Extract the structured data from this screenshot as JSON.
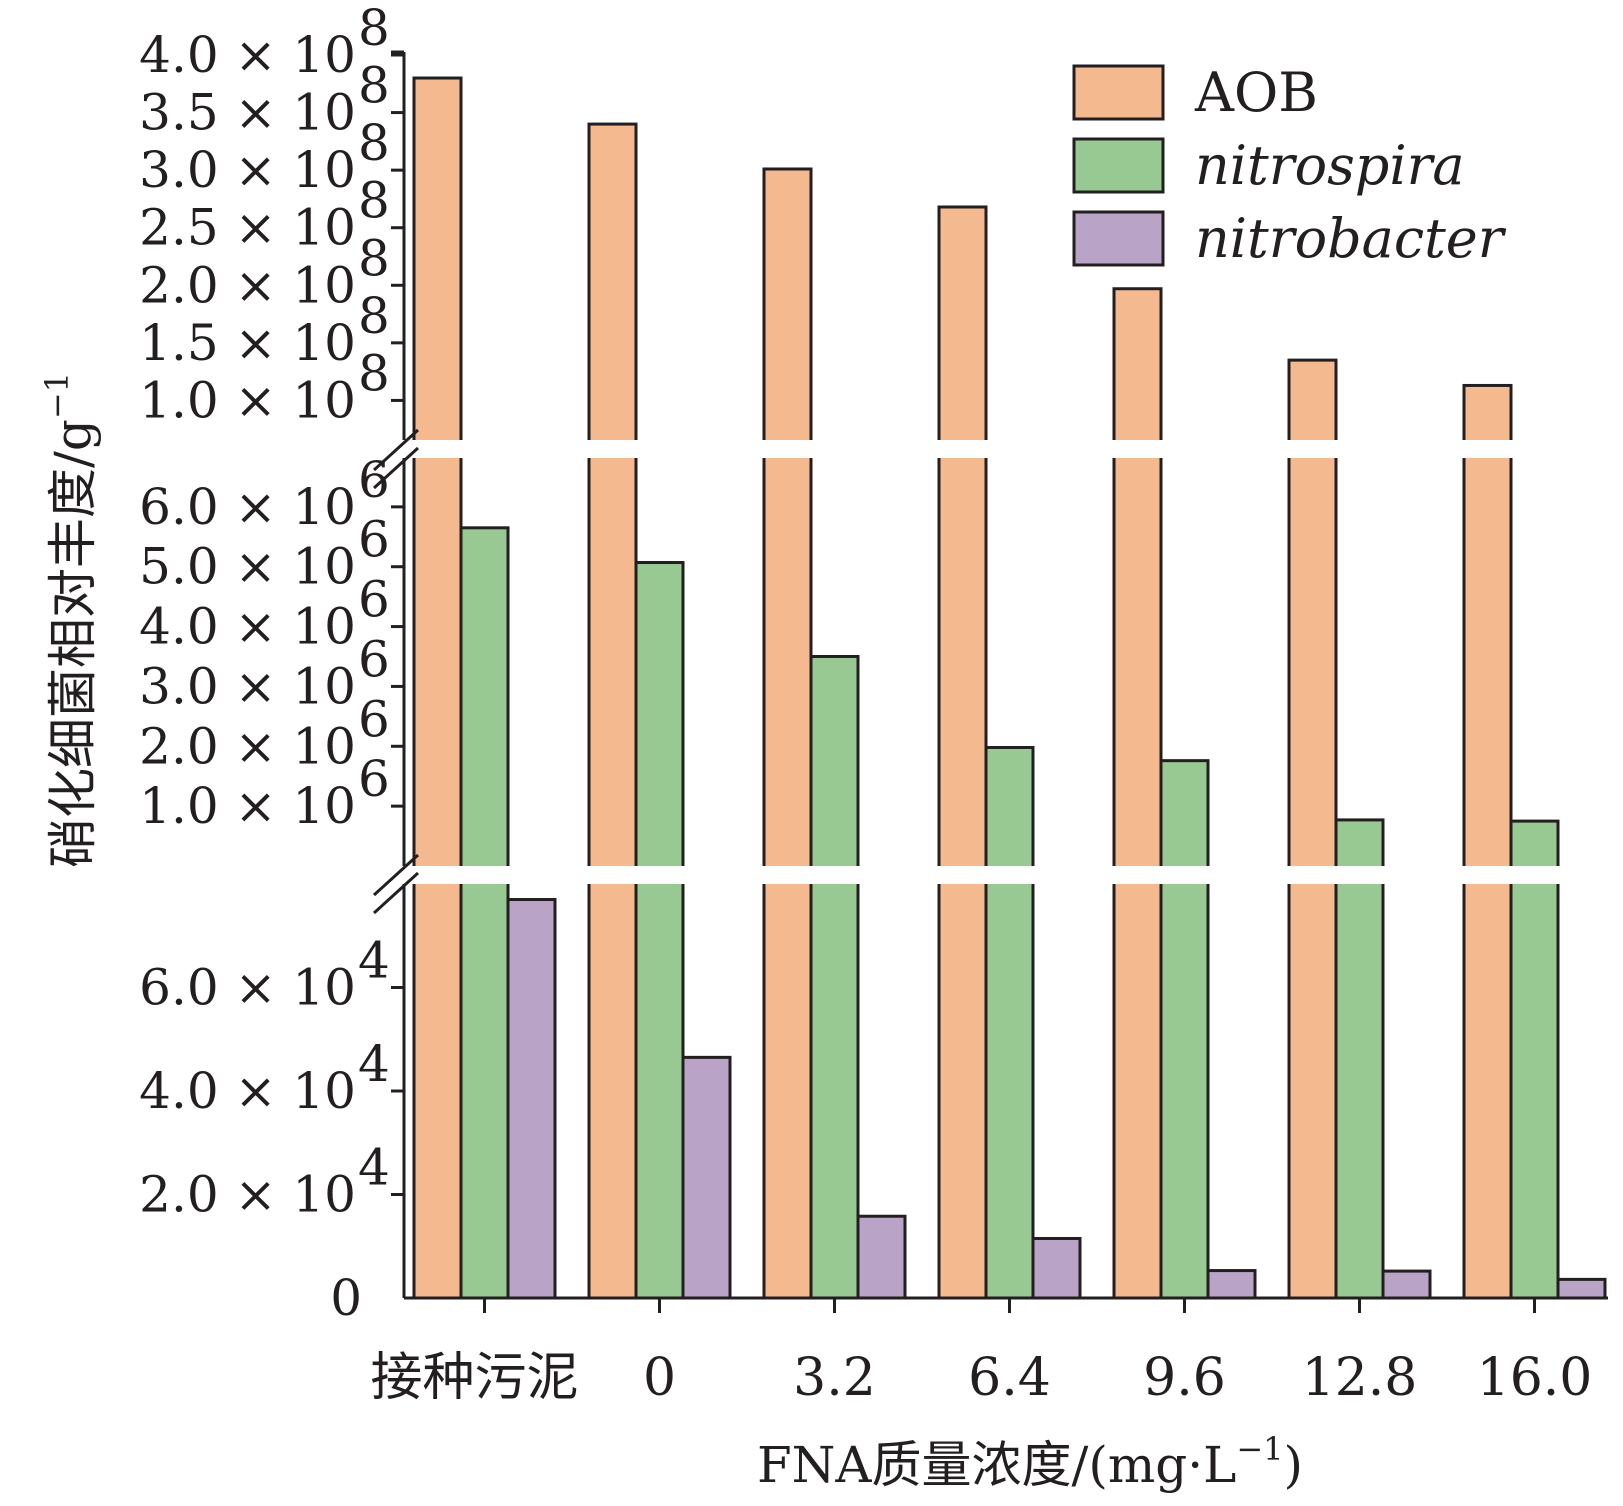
{
  "chart_data": {
    "type": "bar",
    "xlabel": "FNA质量浓度/(mg·L",
    "xlabel_sup": "−1",
    "xlabel_tail": ")",
    "ylabel": "硝化细菌相对丰度/g",
    "ylabel_sup": "−1",
    "categories": [
      "接种污泥",
      "0",
      "3.2",
      "6.4",
      "9.6",
      "12.8",
      "16.0"
    ],
    "series": [
      {
        "name": "AOB",
        "italic": false,
        "color": "#f5b98f",
        "values": [
          380000000,
          340000000,
          301000000,
          268000000,
          197000000,
          135000000,
          113000000
        ]
      },
      {
        "name": "nitrospira",
        "italic": true,
        "color": "#98c993",
        "values": [
          5650000,
          5070000,
          3500000,
          1980000,
          1760000,
          770000,
          750000
        ]
      },
      {
        "name": "nitrobacter",
        "italic": true,
        "color": "#b9a3c6",
        "values": [
          77000,
          46500,
          15800,
          11500,
          5300,
          5200,
          3600
        ]
      }
    ],
    "y_segments": [
      {
        "range": [
          0,
          80000
        ],
        "ticks": [
          {
            "value": 0,
            "mant": "0",
            "exp": ""
          },
          {
            "value": 20000,
            "mant": "2.0 × 10",
            "exp": "4"
          },
          {
            "value": 40000,
            "mant": "4.0 × 10",
            "exp": "4"
          },
          {
            "value": 60000,
            "mant": "6.0 × 10",
            "exp": "4"
          }
        ]
      },
      {
        "range": [
          0,
          7000000
        ],
        "ticks": [
          {
            "value": 1000000,
            "mant": "1.0 × 10",
            "exp": "6"
          },
          {
            "value": 2000000,
            "mant": "2.0 × 10",
            "exp": "6"
          },
          {
            "value": 3000000,
            "mant": "3.0 × 10",
            "exp": "6"
          },
          {
            "value": 4000000,
            "mant": "4.0 × 10",
            "exp": "6"
          },
          {
            "value": 5000000,
            "mant": "5.0 × 10",
            "exp": "6"
          },
          {
            "value": 6000000,
            "mant": "6.0 × 10",
            "exp": "6"
          }
        ]
      },
      {
        "range": [
          50000000,
          400000000
        ],
        "ticks": [
          {
            "value": 100000000,
            "mant": "1.0 × 10",
            "exp": "8"
          },
          {
            "value": 150000000,
            "mant": "1.5 × 10",
            "exp": "8"
          },
          {
            "value": 200000000,
            "mant": "2.0 × 10",
            "exp": "8"
          },
          {
            "value": 250000000,
            "mant": "2.5 × 10",
            "exp": "8"
          },
          {
            "value": 300000000,
            "mant": "3.0 × 10",
            "exp": "8"
          },
          {
            "value": 350000000,
            "mant": "3.5 × 10",
            "exp": "8"
          },
          {
            "value": 400000000,
            "mant": "4.0 × 10",
            "exp": "8"
          }
        ]
      }
    ],
    "y_axis_breaks": 2,
    "grid": false,
    "legend_position": "top-right"
  }
}
